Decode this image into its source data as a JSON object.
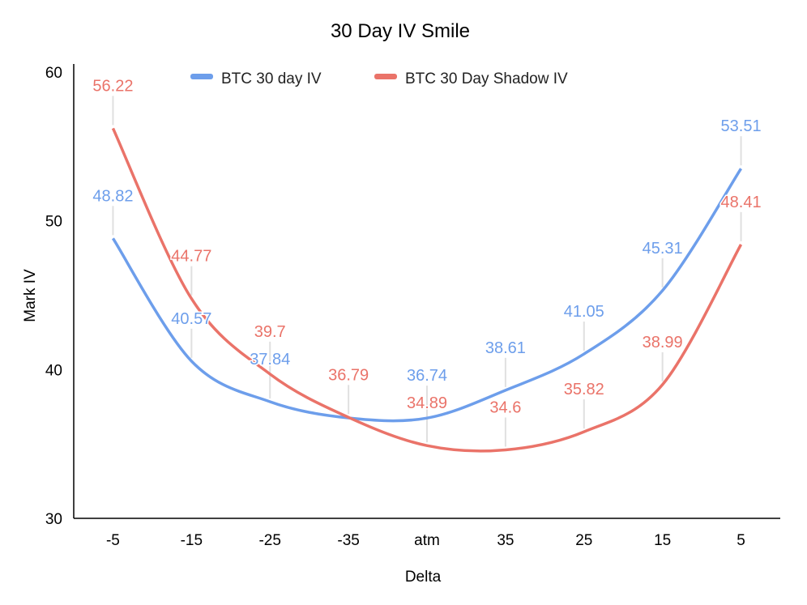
{
  "chart_data": {
    "type": "line",
    "title": "30 Day IV Smile",
    "xlabel": "Delta",
    "ylabel": "Mark IV",
    "categories": [
      "-5",
      "-15",
      "-25",
      "-35",
      "atm",
      "35",
      "25",
      "15",
      "5"
    ],
    "ylim": [
      30,
      60
    ],
    "yticks": [
      30,
      40,
      50,
      60
    ],
    "grid": false,
    "legend": "top",
    "smooth": true,
    "series": [
      {
        "name": "BTC 30 day IV",
        "color": "#6d9eeb",
        "values": [
          48.82,
          40.57,
          37.84,
          36.75,
          36.74,
          38.61,
          41.05,
          45.31,
          53.51
        ],
        "labels": [
          "48.82",
          "40.57",
          "37.84",
          null,
          "36.74",
          "38.61",
          "41.05",
          "45.31",
          "53.51"
        ]
      },
      {
        "name": "BTC 30 Day Shadow IV",
        "color": "#ea7369",
        "values": [
          56.22,
          44.77,
          39.7,
          36.79,
          34.89,
          34.6,
          35.82,
          38.99,
          48.41
        ],
        "labels": [
          "56.22",
          "44.77",
          "39.7",
          "36.79",
          "34.89",
          "34.6",
          "35.82",
          "38.99",
          "48.41"
        ]
      }
    ]
  }
}
